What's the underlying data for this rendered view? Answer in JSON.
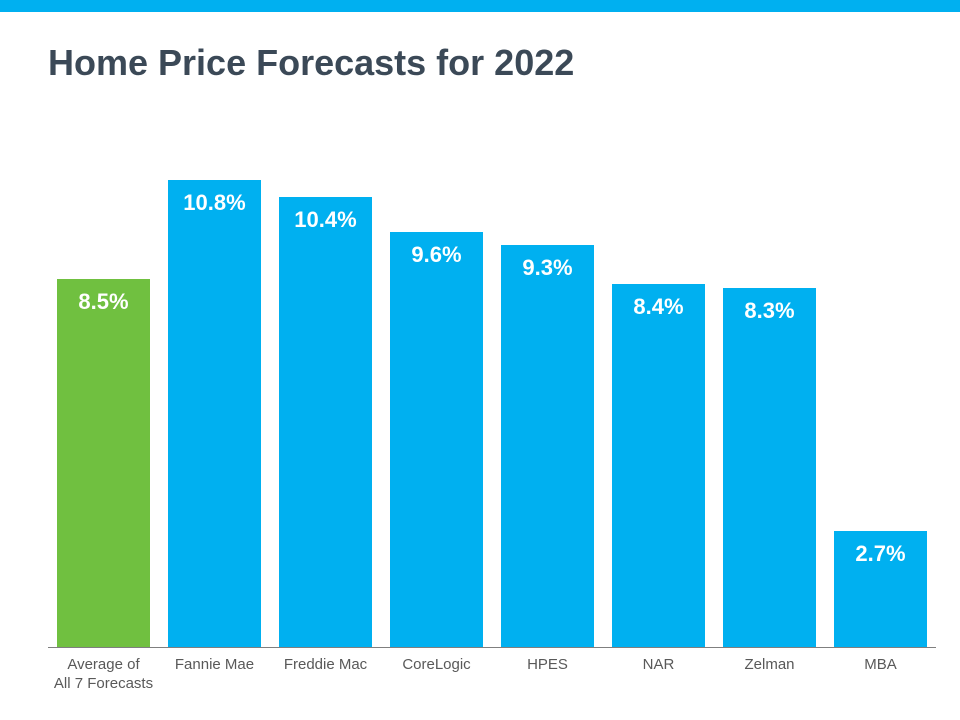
{
  "layout": {
    "top_bar_color": "#00b0f0",
    "background_color": "#ffffff",
    "baseline_color": "#7f7f7f"
  },
  "title": {
    "text": "Home Price Forecasts for 2022",
    "color": "#3b4957",
    "fontsize": 36
  },
  "chart": {
    "type": "bar",
    "y_max": 11.3,
    "bar_label_fontsize": 22,
    "bar_label_color": "#ffffff",
    "x_label_fontsize": 15,
    "x_label_color": "#595959",
    "bars": [
      {
        "category_line1": "Average of",
        "category_line2": "All 7 Forecasts",
        "value": 8.5,
        "display": "8.5%",
        "color": "#70c040"
      },
      {
        "category_line1": "Fannie Mae",
        "category_line2": "",
        "value": 10.8,
        "display": "10.8%",
        "color": "#00b0f0"
      },
      {
        "category_line1": "Freddie Mac",
        "category_line2": "",
        "value": 10.4,
        "display": "10.4%",
        "color": "#00b0f0"
      },
      {
        "category_line1": "CoreLogic",
        "category_line2": "",
        "value": 9.6,
        "display": "9.6%",
        "color": "#00b0f0"
      },
      {
        "category_line1": "HPES",
        "category_line2": "",
        "value": 9.3,
        "display": "9.3%",
        "color": "#00b0f0"
      },
      {
        "category_line1": "NAR",
        "category_line2": "",
        "value": 8.4,
        "display": "8.4%",
        "color": "#00b0f0"
      },
      {
        "category_line1": "Zelman",
        "category_line2": "",
        "value": 8.3,
        "display": "8.3%",
        "color": "#00b0f0"
      },
      {
        "category_line1": "MBA",
        "category_line2": "",
        "value": 2.7,
        "display": "2.7%",
        "color": "#00b0f0"
      }
    ]
  }
}
